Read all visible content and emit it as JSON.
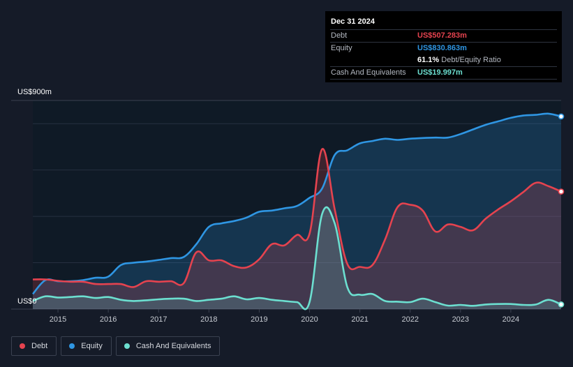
{
  "tooltip": {
    "date": "Dec 31 2024",
    "rows": [
      {
        "name": "Debt",
        "value": "US$507.283m",
        "color": "#e5434f"
      },
      {
        "name": "Equity",
        "value": "US$830.863m",
        "color": "#2f96e3"
      }
    ],
    "ratio_value": "61.1%",
    "ratio_label": "Debt/Equity Ratio",
    "cash": {
      "name": "Cash And Equivalents",
      "value": "US$19.997m",
      "color": "#6cdfd0"
    }
  },
  "legend": [
    {
      "label": "Debt",
      "color": "#e5434f"
    },
    {
      "label": "Equity",
      "color": "#2f96e3"
    },
    {
      "label": "Cash And Equivalents",
      "color": "#6cdfd0"
    }
  ],
  "chart_data": {
    "type": "area",
    "y_max_label": "US$900m",
    "y_min_label": "US$0",
    "ylim": [
      0,
      900
    ],
    "xlim": [
      2014.5,
      2025.0
    ],
    "x_ticks": [
      "2015",
      "2016",
      "2017",
      "2018",
      "2019",
      "2020",
      "2021",
      "2022",
      "2023",
      "2024"
    ],
    "grid": "horizontal",
    "series": [
      {
        "name": "Debt",
        "color": "#e5434f",
        "x": [
          2014.5,
          2014.75,
          2015.0,
          2015.25,
          2015.5,
          2015.75,
          2016.0,
          2016.25,
          2016.5,
          2016.75,
          2017.0,
          2017.25,
          2017.5,
          2017.75,
          2018.0,
          2018.25,
          2018.5,
          2018.75,
          2019.0,
          2019.25,
          2019.5,
          2019.75,
          2020.0,
          2020.25,
          2020.5,
          2020.75,
          2021.0,
          2021.25,
          2021.5,
          2021.75,
          2022.0,
          2022.25,
          2022.5,
          2022.75,
          2023.0,
          2023.25,
          2023.5,
          2023.75,
          2024.0,
          2024.25,
          2024.5,
          2024.75,
          2025.0
        ],
        "values": [
          128,
          128,
          122,
          118,
          118,
          108,
          108,
          108,
          95,
          120,
          118,
          120,
          112,
          245,
          210,
          210,
          185,
          180,
          215,
          280,
          275,
          320,
          325,
          690,
          430,
          195,
          182,
          190,
          300,
          440,
          450,
          425,
          335,
          365,
          355,
          340,
          390,
          430,
          465,
          505,
          545,
          530,
          507
        ]
      },
      {
        "name": "Equity",
        "color": "#2f96e3",
        "x": [
          2014.5,
          2014.75,
          2015.0,
          2015.25,
          2015.5,
          2015.75,
          2016.0,
          2016.25,
          2016.5,
          2016.75,
          2017.0,
          2017.25,
          2017.5,
          2017.75,
          2018.0,
          2018.25,
          2018.5,
          2018.75,
          2019.0,
          2019.25,
          2019.5,
          2019.75,
          2020.0,
          2020.25,
          2020.5,
          2020.75,
          2021.0,
          2021.25,
          2021.5,
          2021.75,
          2022.0,
          2022.25,
          2022.5,
          2022.75,
          2023.0,
          2023.25,
          2023.5,
          2023.75,
          2024.0,
          2024.25,
          2024.5,
          2024.75,
          2025.0
        ],
        "values": [
          65,
          125,
          120,
          120,
          125,
          135,
          140,
          190,
          200,
          205,
          212,
          220,
          225,
          280,
          355,
          370,
          380,
          395,
          420,
          425,
          435,
          445,
          480,
          520,
          665,
          685,
          715,
          725,
          735,
          730,
          735,
          738,
          740,
          740,
          755,
          775,
          795,
          810,
          825,
          835,
          838,
          843,
          831
        ]
      },
      {
        "name": "Cash And Equivalents",
        "color": "#6cdfd0",
        "x": [
          2014.5,
          2014.75,
          2015.0,
          2015.25,
          2015.5,
          2015.75,
          2016.0,
          2016.25,
          2016.5,
          2016.75,
          2017.0,
          2017.25,
          2017.5,
          2017.75,
          2018.0,
          2018.25,
          2018.5,
          2018.75,
          2019.0,
          2019.25,
          2019.5,
          2019.75,
          2020.0,
          2020.25,
          2020.5,
          2020.75,
          2021.0,
          2021.25,
          2021.5,
          2021.75,
          2022.0,
          2022.25,
          2022.5,
          2022.75,
          2023.0,
          2023.25,
          2023.5,
          2023.75,
          2024.0,
          2024.25,
          2024.5,
          2024.75,
          2025.0
        ],
        "values": [
          35,
          55,
          50,
          52,
          55,
          48,
          52,
          40,
          35,
          38,
          42,
          45,
          45,
          35,
          40,
          45,
          55,
          42,
          48,
          40,
          35,
          30,
          30,
          410,
          370,
          95,
          62,
          65,
          35,
          32,
          30,
          45,
          30,
          15,
          18,
          14,
          20,
          22,
          22,
          18,
          20,
          40,
          20
        ]
      }
    ]
  }
}
